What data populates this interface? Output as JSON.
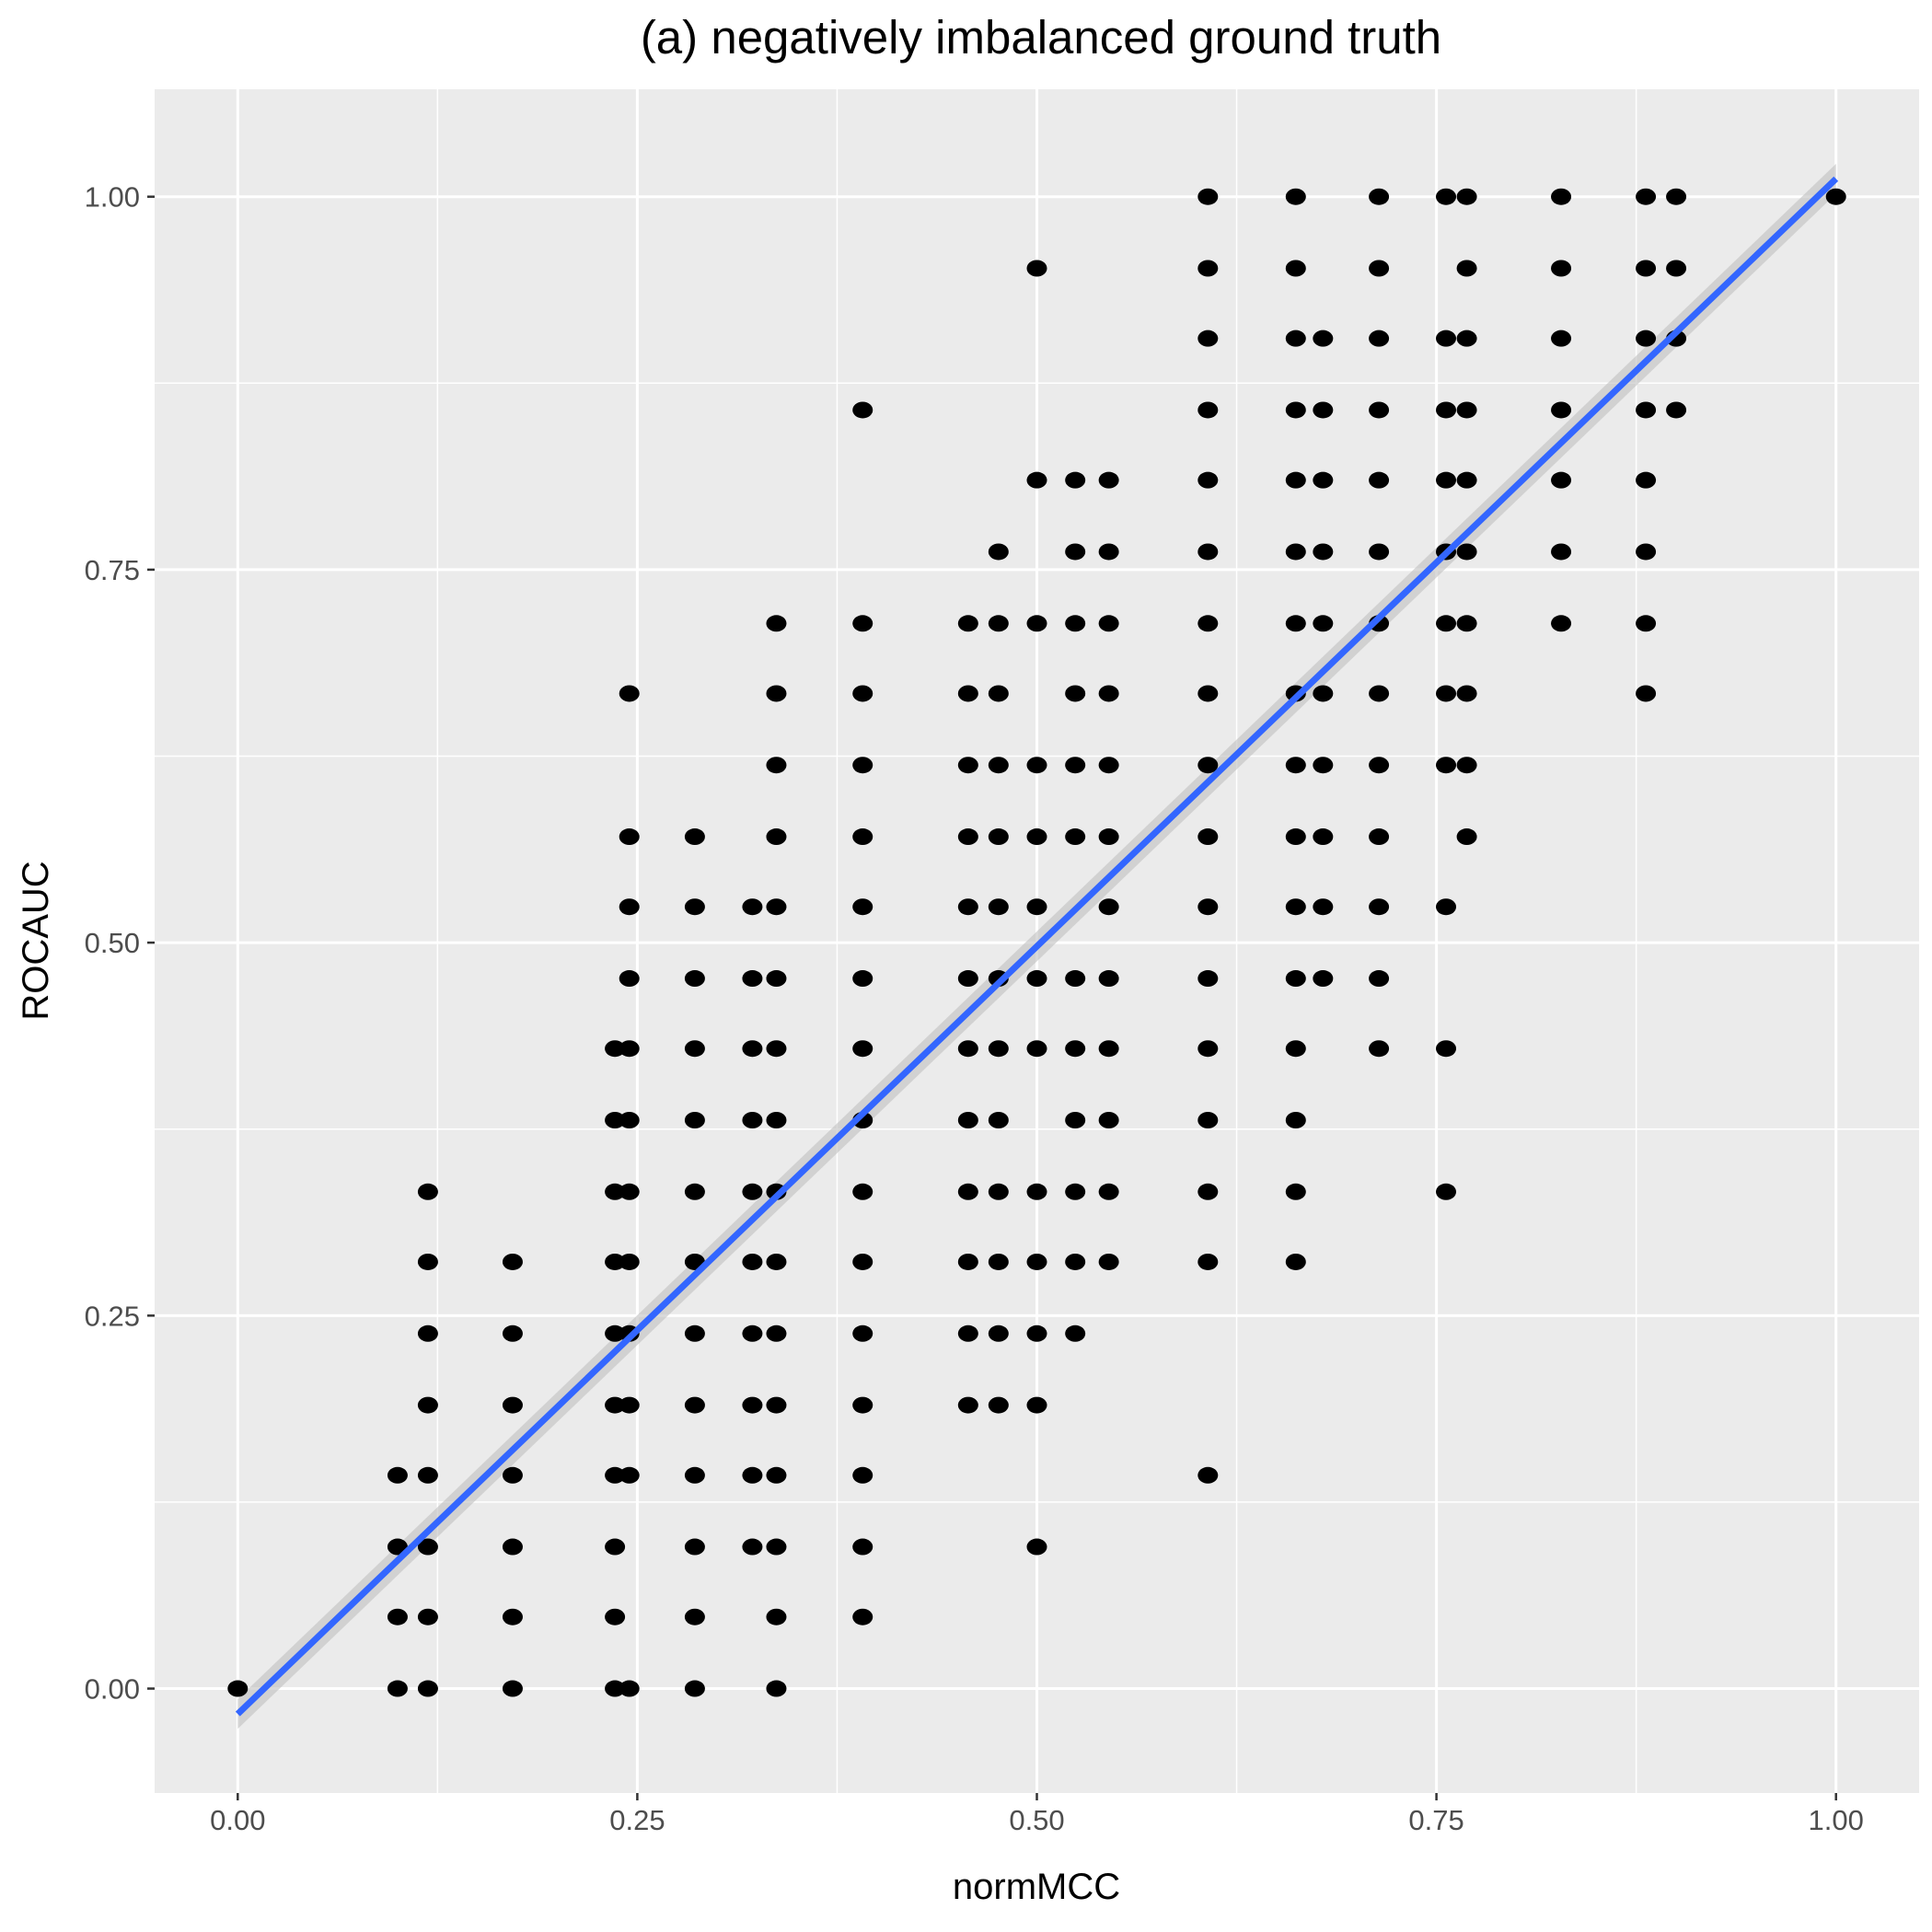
{
  "chart_data": {
    "type": "scatter",
    "title": "(a) negatively imbalanced ground truth",
    "xlabel": "normMCC",
    "ylabel": "ROCAUC",
    "xlim": [
      -0.052,
      1.052
    ],
    "ylim": [
      -0.07,
      1.072
    ],
    "x_ticks": [
      0,
      0.25,
      0.5,
      0.75,
      1.0
    ],
    "x_tick_labels": [
      "0.00",
      "0.25",
      "0.50",
      "0.75",
      "1.00"
    ],
    "y_ticks": [
      0,
      0.25,
      0.5,
      0.75,
      1.0
    ],
    "y_tick_labels": [
      "0.00",
      "0.25",
      "0.50",
      "0.75",
      "1.00"
    ],
    "grid": true,
    "colors": {
      "panel_background": "#ebebeb",
      "grid": "#ffffff",
      "points": "#000000",
      "fit_line": "#3366ff",
      "confidence_band": "#c0c0c0"
    },
    "fit_line": {
      "method": "linear",
      "x": [
        0,
        1
      ],
      "y": [
        -0.017,
        1.012
      ]
    },
    "point_columns": [
      {
        "x": 0.0,
        "ys": [
          0
        ]
      },
      {
        "x": 0.1,
        "ys": [
          0,
          0.048,
          0.095,
          0.143
        ]
      },
      {
        "x": 0.119,
        "ys": [
          0,
          0.048,
          0.095,
          0.143,
          0.19,
          0.238,
          0.286,
          0.333
        ]
      },
      {
        "x": 0.172,
        "ys": [
          0,
          0.048,
          0.095,
          0.143,
          0.19,
          0.238,
          0.286
        ]
      },
      {
        "x": 0.236,
        "ys": [
          0,
          0.048,
          0.095,
          0.143,
          0.19,
          0.238,
          0.286,
          0.333,
          0.381,
          0.429
        ]
      },
      {
        "x": 0.245,
        "ys": [
          0,
          0.143,
          0.19,
          0.238,
          0.286,
          0.333,
          0.381,
          0.429,
          0.476,
          0.524,
          0.571,
          0.667
        ]
      },
      {
        "x": 0.286,
        "ys": [
          0,
          0.048,
          0.095,
          0.143,
          0.19,
          0.238,
          0.286,
          0.333,
          0.381,
          0.429,
          0.476,
          0.524,
          0.571
        ]
      },
      {
        "x": 0.322,
        "ys": [
          0.095,
          0.143,
          0.19,
          0.238,
          0.286,
          0.333,
          0.381,
          0.429,
          0.476,
          0.524
        ]
      },
      {
        "x": 0.337,
        "ys": [
          0,
          0.048,
          0.095,
          0.143,
          0.19,
          0.238,
          0.286,
          0.333,
          0.381,
          0.429,
          0.476,
          0.524,
          0.571,
          0.619,
          0.667,
          0.714
        ]
      },
      {
        "x": 0.391,
        "ys": [
          0.048,
          0.095,
          0.143,
          0.19,
          0.238,
          0.286,
          0.333,
          0.381,
          0.429,
          0.476,
          0.524,
          0.571,
          0.619,
          0.667,
          0.714,
          0.857
        ]
      },
      {
        "x": 0.457,
        "ys": [
          0.19,
          0.238,
          0.286,
          0.333,
          0.381,
          0.429,
          0.476,
          0.524,
          0.571,
          0.619,
          0.667,
          0.714
        ]
      },
      {
        "x": 0.476,
        "ys": [
          0.19,
          0.238,
          0.286,
          0.333,
          0.381,
          0.429,
          0.476,
          0.524,
          0.571,
          0.619,
          0.667,
          0.714,
          0.762
        ]
      },
      {
        "x": 0.5,
        "ys": [
          0.095,
          0.19,
          0.238,
          0.286,
          0.333,
          0.429,
          0.476,
          0.524,
          0.571,
          0.619,
          0.714,
          0.81,
          0.952
        ]
      },
      {
        "x": 0.524,
        "ys": [
          0.238,
          0.286,
          0.333,
          0.381,
          0.429,
          0.476,
          0.571,
          0.619,
          0.667,
          0.714,
          0.762,
          0.81
        ]
      },
      {
        "x": 0.545,
        "ys": [
          0.286,
          0.333,
          0.381,
          0.429,
          0.476,
          0.524,
          0.571,
          0.619,
          0.667,
          0.714,
          0.762,
          0.81
        ]
      },
      {
        "x": 0.607,
        "ys": [
          0.143,
          0.286,
          0.333,
          0.381,
          0.429,
          0.476,
          0.524,
          0.571,
          0.619,
          0.667,
          0.714,
          0.762,
          0.81,
          0.857,
          0.905,
          0.952,
          1.0
        ]
      },
      {
        "x": 0.662,
        "ys": [
          0.286,
          0.333,
          0.381,
          0.429,
          0.476,
          0.524,
          0.571,
          0.619,
          0.667,
          0.714,
          0.762,
          0.81,
          0.857,
          0.905,
          0.952,
          1.0
        ]
      },
      {
        "x": 0.679,
        "ys": [
          0.476,
          0.524,
          0.571,
          0.619,
          0.667,
          0.714,
          0.762,
          0.81,
          0.857,
          0.905
        ]
      },
      {
        "x": 0.714,
        "ys": [
          0.429,
          0.476,
          0.524,
          0.571,
          0.619,
          0.667,
          0.714,
          0.762,
          0.81,
          0.857,
          0.905,
          0.952,
          1.0
        ]
      },
      {
        "x": 0.756,
        "ys": [
          0.333,
          0.429,
          0.524,
          0.619,
          0.667,
          0.714,
          0.762,
          0.81,
          0.857,
          0.905,
          1.0
        ]
      },
      {
        "x": 0.769,
        "ys": [
          0.571,
          0.619,
          0.667,
          0.714,
          0.762,
          0.81,
          0.857,
          0.905,
          0.952,
          1.0
        ]
      },
      {
        "x": 0.828,
        "ys": [
          0.714,
          0.762,
          0.81,
          0.857,
          0.905,
          0.952,
          1.0
        ]
      },
      {
        "x": 0.881,
        "ys": [
          0.667,
          0.714,
          0.762,
          0.81,
          0.857,
          0.905,
          0.952,
          1.0
        ]
      },
      {
        "x": 0.9,
        "ys": [
          0.857,
          0.905,
          0.952,
          1.0
        ]
      },
      {
        "x": 1.0,
        "ys": [
          1.0
        ]
      }
    ]
  }
}
